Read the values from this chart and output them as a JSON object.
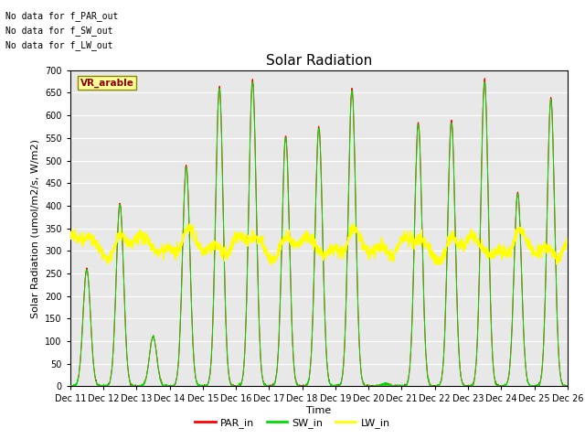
{
  "title": "Solar Radiation",
  "ylabel": "Solar Radiation (umol/m2/s, W/m2)",
  "xlabel": "Time",
  "ylim": [
    0,
    700
  ],
  "yticks": [
    0,
    50,
    100,
    150,
    200,
    250,
    300,
    350,
    400,
    450,
    500,
    550,
    600,
    650,
    700
  ],
  "xtick_labels": [
    "Dec 11",
    "Dec 12",
    "Dec 13",
    "Dec 14",
    "Dec 15",
    "Dec 16",
    "Dec 17",
    "Dec 18",
    "Dec 19",
    "Dec 20",
    "Dec 21",
    "Dec 22",
    "Dec 23",
    "Dec 24",
    "Dec 25",
    "Dec 26"
  ],
  "annotations": [
    "No data for f_PAR_out",
    "No data for f_SW_out",
    "No data for f_LW_out"
  ],
  "vr_label": "VR_arable",
  "plot_bg_color": "#e8e8e8",
  "par_color": "#ff0000",
  "sw_color": "#00dd00",
  "lw_color": "#ffff00",
  "legend_labels": [
    "PAR_in",
    "SW_in",
    "LW_in"
  ],
  "n_days": 15,
  "points_per_day": 144,
  "title_fontsize": 11,
  "axis_fontsize": 8,
  "tick_fontsize": 7
}
